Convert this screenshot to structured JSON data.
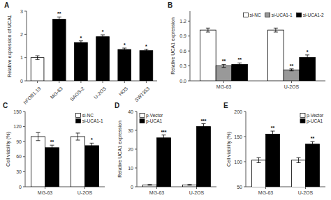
{
  "chart_data": [
    {
      "type": "bar",
      "title": "A",
      "categories": [
        "hFOB1.19",
        "MG-63",
        "SAOS-2",
        "U-2OS",
        "HOS",
        "SW1353"
      ],
      "values": [
        1.0,
        2.65,
        1.65,
        1.9,
        1.35,
        1.3
      ],
      "errors": [
        0.08,
        0.1,
        0.07,
        0.08,
        0.06,
        0.06
      ],
      "colors": [
        "white",
        "black",
        "black",
        "black",
        "black",
        "black"
      ],
      "annotations": [
        null,
        "**",
        "*",
        "*",
        "*",
        "*"
      ],
      "ylabel": "Relative expression of UCA1",
      "ylim": [
        0,
        3
      ],
      "yticks": [
        0,
        1,
        2,
        3
      ]
    },
    {
      "type": "bar",
      "title": "B",
      "categories": [
        "MG-63",
        "U-2OS"
      ],
      "series": [
        {
          "name": "si-NC",
          "color": "white",
          "values": [
            1.02,
            1.02
          ],
          "errors": [
            0.04,
            0.04
          ],
          "annotations": [
            null,
            null
          ]
        },
        {
          "name": "si-UCA1-1",
          "color": "#999999",
          "values": [
            0.3,
            0.22
          ],
          "errors": [
            0.03,
            0.02
          ],
          "annotations": [
            "**",
            "**"
          ]
        },
        {
          "name": "si-UCA1-2",
          "color": "black",
          "values": [
            0.33,
            0.47
          ],
          "errors": [
            0.03,
            0.05
          ],
          "annotations": [
            "**",
            "*"
          ]
        }
      ],
      "ylabel": "Relative UCA1 expression",
      "ylim": [
        0,
        1.4
      ],
      "yticks": [
        {
          "value": 0,
          "label": "0.0"
        },
        0.3,
        0.6,
        0.9,
        1.2
      ],
      "legend": "upper right"
    },
    {
      "type": "bar",
      "title": "C",
      "categories": [
        "MG-63",
        "U-2OS"
      ],
      "series": [
        {
          "name": "si-NC",
          "color": "white",
          "values": [
            100,
            100
          ],
          "errors": [
            8,
            7
          ],
          "annotations": [
            null,
            null
          ]
        },
        {
          "name": "si-UCA1-1",
          "color": "black",
          "values": [
            78,
            82
          ],
          "errors": [
            5,
            5
          ],
          "annotations": [
            "**",
            "*"
          ]
        }
      ],
      "ylabel": "Cell viability (%)",
      "ylim": [
        0,
        150
      ],
      "yticks": [
        0,
        30,
        60,
        90,
        120,
        150
      ],
      "legend": "upper right"
    },
    {
      "type": "bar",
      "title": "D",
      "categories": [
        "MG-63",
        "U-2OS"
      ],
      "series": [
        {
          "name": "p-Vector",
          "color": "white",
          "values": [
            1,
            1
          ],
          "errors": [
            0.2,
            0.2
          ],
          "annotations": [
            null,
            null
          ]
        },
        {
          "name": "p-UCA1",
          "color": "black",
          "values": [
            26,
            32
          ],
          "errors": [
            1.5,
            1.5
          ],
          "annotations": [
            "***",
            "***"
          ]
        }
      ],
      "ylabel": "Relative UCA1 expression",
      "ylim": [
        0,
        40
      ],
      "yticks": [
        0,
        10,
        20,
        30,
        40
      ],
      "legend": "upper left"
    },
    {
      "type": "bar",
      "title": "E",
      "categories": [
        "MG-63",
        "U-2OS"
      ],
      "series": [
        {
          "name": "p-Vector",
          "color": "white",
          "values": [
            103,
            103
          ],
          "errors": [
            5,
            5
          ],
          "annotations": [
            null,
            null
          ]
        },
        {
          "name": "p-UCA1",
          "color": "black",
          "values": [
            155,
            135
          ],
          "errors": [
            6,
            5
          ],
          "annotations": [
            "**",
            "**"
          ]
        }
      ],
      "ylabel": "Cell viability (%)",
      "ylim": [
        50,
        200
      ],
      "yticks": [
        50,
        100,
        150,
        200
      ],
      "legend": "upper right"
    }
  ]
}
